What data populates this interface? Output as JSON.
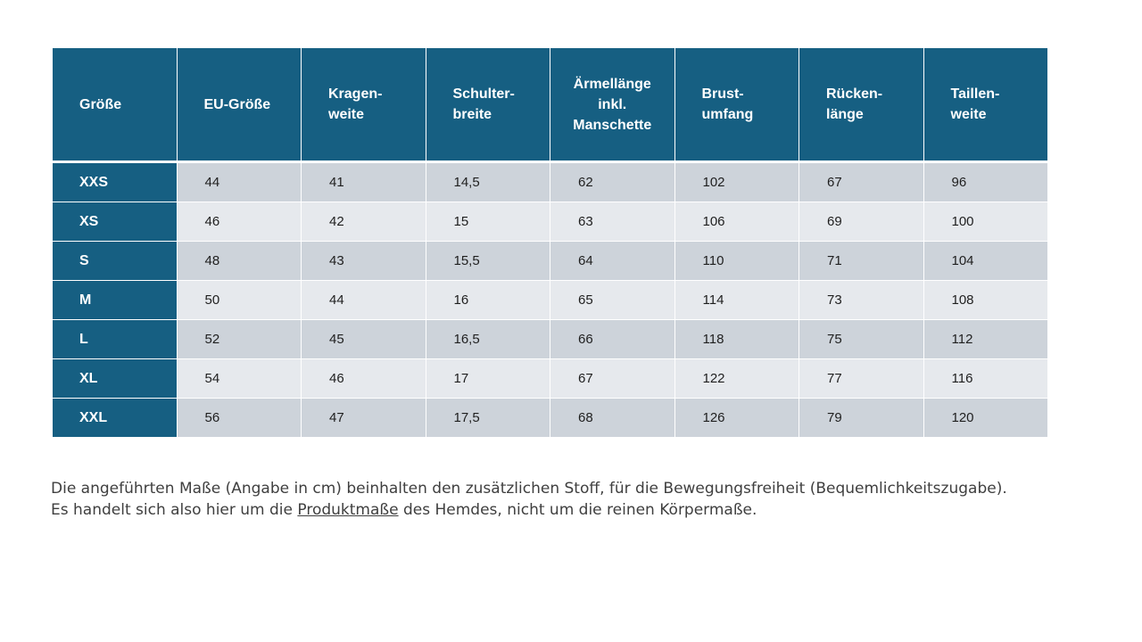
{
  "table": {
    "headers": [
      "Größe",
      "EU-Größe",
      "Kragen-\nweite",
      "Schulter-\nbreite",
      "Ärmellänge\ninkl.\nManschette",
      "Brust-\numfang",
      "Rücken-\nlänge",
      "Taillen-\nweite"
    ],
    "rows": [
      [
        "XXS",
        "44",
        "41",
        "14,5",
        "62",
        "102",
        "67",
        "96"
      ],
      [
        "XS",
        "46",
        "42",
        "15",
        "63",
        "106",
        "69",
        "100"
      ],
      [
        "S",
        "48",
        "43",
        "15,5",
        "64",
        "110",
        "71",
        "104"
      ],
      [
        "M",
        "50",
        "44",
        "16",
        "65",
        "114",
        "73",
        "108"
      ],
      [
        "L",
        "52",
        "45",
        "16,5",
        "66",
        "118",
        "75",
        "112"
      ],
      [
        "XL",
        "54",
        "46",
        "17",
        "67",
        "122",
        "77",
        "116"
      ],
      [
        "XXL",
        "56",
        "47",
        "17,5",
        "68",
        "126",
        "79",
        "120"
      ]
    ]
  },
  "note": {
    "line1": "Die angeführten Maße (Angabe in cm) beinhalten den zusätzlichen Stoff, für die Bewegungsfreiheit (Bequemlichkeitszugabe).",
    "line2_before": "Es handelt sich also hier um die ",
    "line2_link": "Produktmaße",
    "line2_after": " des Hemdes, nicht um die reinen Körpermaße."
  },
  "colors": {
    "header_bg": "#165f82",
    "row_dark": "#cdd3da",
    "row_light": "#e6e9ed"
  }
}
